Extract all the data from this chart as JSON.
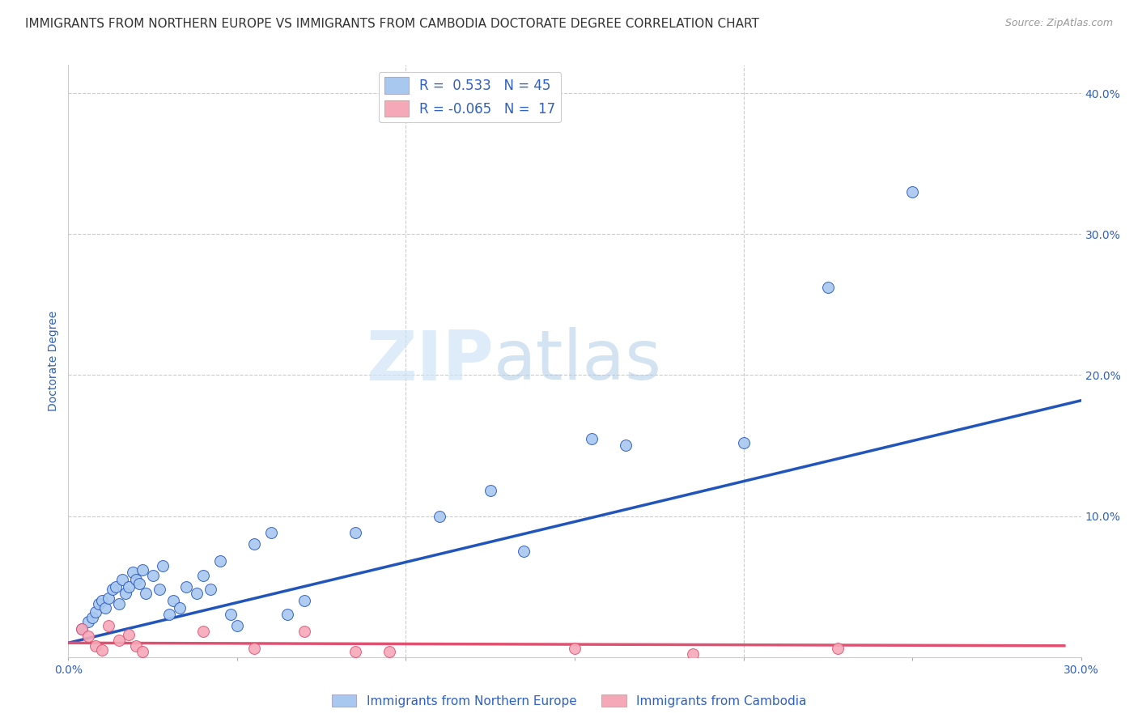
{
  "title": "IMMIGRANTS FROM NORTHERN EUROPE VS IMMIGRANTS FROM CAMBODIA DOCTORATE DEGREE CORRELATION CHART",
  "source": "Source: ZipAtlas.com",
  "ylabel": "Doctorate Degree",
  "xlim": [
    0.0,
    0.3
  ],
  "ylim": [
    0.0,
    0.42
  ],
  "xticks": [
    0.0,
    0.05,
    0.1,
    0.15,
    0.2,
    0.25,
    0.3
  ],
  "yticks": [
    0.0,
    0.1,
    0.2,
    0.3,
    0.4
  ],
  "ytick_labels": [
    "",
    "10.0%",
    "20.0%",
    "30.0%",
    "40.0%"
  ],
  "xtick_labels": [
    "0.0%",
    "",
    "",
    "",
    "",
    "",
    "30.0%"
  ],
  "blue_r": 0.533,
  "blue_n": 45,
  "pink_r": -0.065,
  "pink_n": 17,
  "blue_color": "#a8c8f0",
  "blue_line_color": "#2255bb",
  "pink_color": "#f5a8b8",
  "pink_line_color": "#e05070",
  "blue_scatter_x": [
    0.004,
    0.006,
    0.007,
    0.008,
    0.009,
    0.01,
    0.011,
    0.012,
    0.013,
    0.014,
    0.015,
    0.016,
    0.017,
    0.018,
    0.019,
    0.02,
    0.021,
    0.022,
    0.023,
    0.025,
    0.027,
    0.028,
    0.03,
    0.031,
    0.033,
    0.035,
    0.038,
    0.04,
    0.042,
    0.045,
    0.048,
    0.05,
    0.055,
    0.06,
    0.065,
    0.07,
    0.085,
    0.11,
    0.125,
    0.135,
    0.155,
    0.165,
    0.2,
    0.225,
    0.25
  ],
  "blue_scatter_y": [
    0.02,
    0.025,
    0.028,
    0.032,
    0.038,
    0.04,
    0.035,
    0.042,
    0.048,
    0.05,
    0.038,
    0.055,
    0.045,
    0.05,
    0.06,
    0.055,
    0.052,
    0.062,
    0.045,
    0.058,
    0.048,
    0.065,
    0.03,
    0.04,
    0.035,
    0.05,
    0.045,
    0.058,
    0.048,
    0.068,
    0.03,
    0.022,
    0.08,
    0.088,
    0.03,
    0.04,
    0.088,
    0.1,
    0.118,
    0.075,
    0.155,
    0.15,
    0.152,
    0.262,
    0.33
  ],
  "pink_scatter_x": [
    0.004,
    0.006,
    0.008,
    0.01,
    0.012,
    0.015,
    0.018,
    0.02,
    0.022,
    0.04,
    0.055,
    0.07,
    0.085,
    0.095,
    0.15,
    0.185,
    0.228
  ],
  "pink_scatter_y": [
    0.02,
    0.015,
    0.008,
    0.005,
    0.022,
    0.012,
    0.016,
    0.008,
    0.004,
    0.018,
    0.006,
    0.018,
    0.004,
    0.004,
    0.006,
    0.002,
    0.006
  ],
  "blue_line_x": [
    0.0,
    0.3
  ],
  "blue_line_y": [
    0.01,
    0.182
  ],
  "pink_line_x": [
    0.0,
    0.295
  ],
  "pink_line_y": [
    0.01,
    0.008
  ],
  "legend_label_blue": "Immigrants from Northern Europe",
  "legend_label_pink": "Immigrants from Cambodia",
  "watermark_zip": "ZIP",
  "watermark_atlas": "atlas",
  "axis_color": "#3060c0",
  "grid_color": "#cccccc",
  "background_color": "#ffffff",
  "title_fontsize": 11,
  "axis_label_fontsize": 10,
  "tick_fontsize": 10,
  "legend_fontsize": 11
}
